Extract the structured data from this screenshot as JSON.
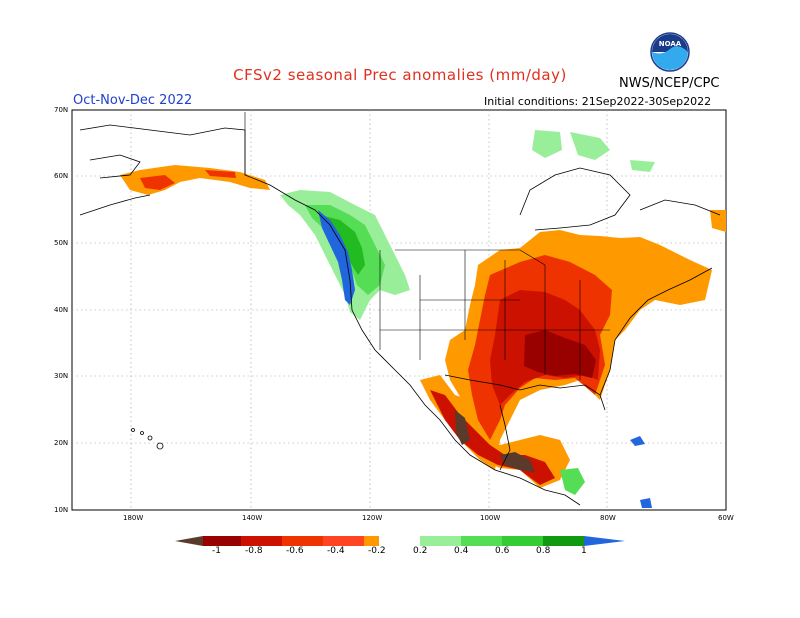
{
  "header": {
    "title": "CFSv2 seasonal Prec anomalies (mm/day)",
    "period": "Oct-Nov-Dec 2022",
    "initial_conditions": "Initial conditions: 21Sep2022-30Sep2022",
    "agency": "NWS/NCEP/CPC",
    "logo_text": "NOAA"
  },
  "axes": {
    "lat_labels": [
      "70N",
      "60N",
      "50N",
      "40N",
      "30N",
      "20N",
      "10N"
    ],
    "lon_labels": [
      "180W",
      "140W",
      "120W",
      "100W",
      "80W",
      "60W"
    ]
  },
  "legend": {
    "labels": [
      "-1",
      "-0.8",
      "-0.6",
      "-0.4",
      "-0.2",
      "0.2",
      "0.4",
      "0.6",
      "0.8",
      "1"
    ],
    "colors": {
      "lt_minus1": "#5a3a2a",
      "m1_m08": "#990000",
      "m08_m06": "#cc1100",
      "m06_m04": "#ee3300",
      "m04_m02": "#ff9900",
      "m02_p02": "#ffffff",
      "p02_p04": "#99ee99",
      "p04_p06": "#55dd55",
      "p06_p08": "#22bb22",
      "p08_p1": "#119911",
      "gt_1": "#2266dd"
    }
  }
}
